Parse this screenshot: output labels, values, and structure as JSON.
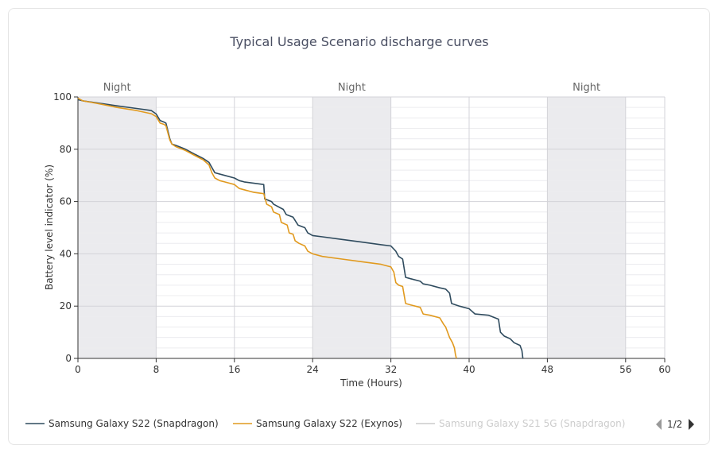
{
  "chart_data": {
    "type": "line",
    "title": "Typical Usage Scenario discharge curves",
    "xlabel": "Time (Hours)",
    "ylabel": "Battery level indicator (%)",
    "xlim": [
      0,
      60
    ],
    "ylim": [
      0,
      100
    ],
    "xticks": [
      0,
      8,
      16,
      24,
      32,
      40,
      48,
      56,
      60
    ],
    "yticks": [
      0,
      20,
      40,
      60,
      80,
      100
    ],
    "grid": true,
    "night_bands": [
      {
        "label": "Night",
        "start": 0,
        "end": 8
      },
      {
        "label": "Night",
        "start": 24,
        "end": 32
      },
      {
        "label": "Night",
        "start": 48,
        "end": 56
      }
    ],
    "series": [
      {
        "name": "Samsung Galaxy S22 (Snapdragon)",
        "color": "#2f4b5e",
        "visible": true,
        "points": [
          [
            0,
            99
          ],
          [
            0.5,
            98.5
          ],
          [
            2,
            97.7
          ],
          [
            4,
            96.6
          ],
          [
            6,
            95.6
          ],
          [
            7.5,
            94.8
          ],
          [
            8,
            93.5
          ],
          [
            8.4,
            91
          ],
          [
            8.8,
            90.4
          ],
          [
            9,
            90
          ],
          [
            9.4,
            84
          ],
          [
            9.6,
            82
          ],
          [
            10,
            81.5
          ],
          [
            11,
            80
          ],
          [
            12,
            78
          ],
          [
            12.8,
            76.5
          ],
          [
            13.4,
            75
          ],
          [
            14,
            71
          ],
          [
            15,
            70
          ],
          [
            16,
            69
          ],
          [
            16.5,
            68
          ],
          [
            17,
            67.5
          ],
          [
            18,
            67
          ],
          [
            19,
            66.5
          ],
          [
            19.1,
            61
          ],
          [
            19.8,
            60
          ],
          [
            20,
            59
          ],
          [
            21,
            57
          ],
          [
            21.3,
            55
          ],
          [
            22,
            54
          ],
          [
            22.5,
            51
          ],
          [
            23.2,
            50
          ],
          [
            23.5,
            48
          ],
          [
            24,
            47
          ],
          [
            25,
            46.5
          ],
          [
            27,
            45.5
          ],
          [
            29,
            44.5
          ],
          [
            31,
            43.5
          ],
          [
            32,
            43
          ],
          [
            32.5,
            41
          ],
          [
            32.8,
            39
          ],
          [
            33.2,
            38
          ],
          [
            33.5,
            31
          ],
          [
            34,
            30.5
          ],
          [
            35,
            29.5
          ],
          [
            35.3,
            28.5
          ],
          [
            36,
            28
          ],
          [
            37,
            27
          ],
          [
            37.6,
            26.5
          ],
          [
            38,
            25
          ],
          [
            38.2,
            21
          ],
          [
            39,
            20
          ],
          [
            40,
            19
          ],
          [
            40.3,
            18
          ],
          [
            40.6,
            17
          ],
          [
            42,
            16.5
          ],
          [
            43,
            15
          ],
          [
            43.2,
            10
          ],
          [
            43.6,
            8.5
          ],
          [
            44.2,
            7.5
          ],
          [
            44.6,
            6
          ],
          [
            45.2,
            5
          ],
          [
            45.4,
            3
          ],
          [
            45.5,
            0
          ]
        ]
      },
      {
        "name": "Samsung Galaxy S22 (Exynos)",
        "color": "#e19a1f",
        "visible": true,
        "points": [
          [
            0,
            99.5
          ],
          [
            0.5,
            98.5
          ],
          [
            2,
            97.5
          ],
          [
            4,
            96
          ],
          [
            6,
            94.8
          ],
          [
            7.5,
            93.6
          ],
          [
            8,
            92.5
          ],
          [
            8.4,
            90
          ],
          [
            8.8,
            89.5
          ],
          [
            9,
            89
          ],
          [
            9.4,
            83.5
          ],
          [
            9.6,
            82
          ],
          [
            10,
            81
          ],
          [
            11,
            79.5
          ],
          [
            12,
            77.5
          ],
          [
            12.8,
            76
          ],
          [
            13.4,
            74
          ],
          [
            13.7,
            71
          ],
          [
            14,
            69
          ],
          [
            14.5,
            68
          ],
          [
            15,
            67.5
          ],
          [
            16,
            66.5
          ],
          [
            16.5,
            65
          ],
          [
            17,
            64.5
          ],
          [
            18,
            63.5
          ],
          [
            19,
            63
          ],
          [
            19.3,
            59
          ],
          [
            19.8,
            58
          ],
          [
            20,
            56
          ],
          [
            20.6,
            55
          ],
          [
            20.8,
            52
          ],
          [
            21.4,
            51
          ],
          [
            21.6,
            48
          ],
          [
            22,
            47.5
          ],
          [
            22.2,
            45
          ],
          [
            22.6,
            44
          ],
          [
            23.2,
            43
          ],
          [
            23.5,
            41
          ],
          [
            24,
            40
          ],
          [
            25,
            39
          ],
          [
            27,
            38
          ],
          [
            29,
            37
          ],
          [
            31,
            36
          ],
          [
            32,
            35
          ],
          [
            32.3,
            33
          ],
          [
            32.5,
            29
          ],
          [
            32.8,
            28
          ],
          [
            33.2,
            27.5
          ],
          [
            33.5,
            21
          ],
          [
            34,
            20.5
          ],
          [
            35,
            19.5
          ],
          [
            35.3,
            17
          ],
          [
            36,
            16.5
          ],
          [
            37,
            15.5
          ],
          [
            37.4,
            13
          ],
          [
            37.6,
            12
          ],
          [
            38,
            8
          ],
          [
            38.3,
            6
          ],
          [
            38.5,
            4
          ],
          [
            38.6,
            1.5
          ],
          [
            38.7,
            0
          ]
        ]
      },
      {
        "name": "Samsung Galaxy S21 5G (Snapdragon)",
        "color": "#cccccc",
        "visible": false,
        "points": []
      }
    ]
  },
  "pager": {
    "label": "1/2"
  },
  "colors": {
    "band": "#ebebee",
    "grid_major": "#d3d3d8",
    "grid_minor": "#ececef",
    "axis": "#333333",
    "arrow_left": "#999999",
    "arrow_right": "#333333"
  }
}
